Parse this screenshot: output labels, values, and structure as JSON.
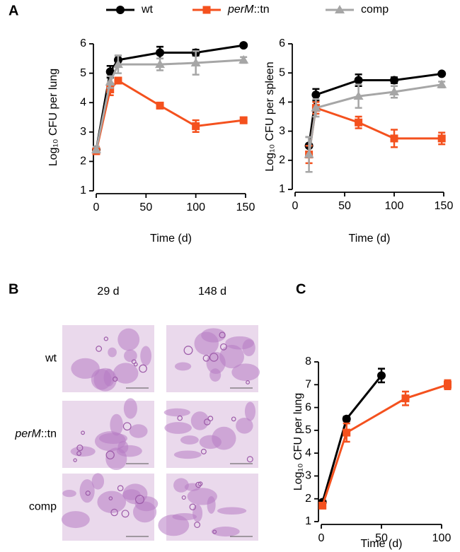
{
  "chart_data": [
    {
      "type": "line",
      "panel": "A",
      "xlabel": "Time (d)",
      "ylabel": "Log₁₀ CFU per lung",
      "xlim": [
        0,
        150
      ],
      "xticks": [
        0,
        50,
        100,
        150
      ],
      "ylim": [
        1,
        6
      ],
      "yticks": [
        1,
        2,
        3,
        4,
        5,
        6
      ],
      "series": [
        {
          "name": "wt",
          "color": "#000000",
          "marker": "circle",
          "x": [
            0,
            14,
            22,
            64,
            100,
            148
          ],
          "values": [
            2.4,
            5.05,
            5.45,
            5.7,
            5.7,
            5.95
          ],
          "errors": [
            0.1,
            0.2,
            0.15,
            0.2,
            0.1,
            0.05
          ]
        },
        {
          "name": "perM::tn",
          "color": "#f4511e",
          "marker": "square",
          "x": [
            0,
            14,
            22,
            64,
            100,
            148
          ],
          "values": [
            2.35,
            4.45,
            4.75,
            3.9,
            3.2,
            3.4
          ],
          "errors": [
            0.1,
            0.2,
            0.1,
            0.1,
            0.2,
            0.1
          ]
        },
        {
          "name": "comp",
          "color": "#a6a6a6",
          "marker": "triangle",
          "x": [
            0,
            14,
            22,
            64,
            100,
            148
          ],
          "values": [
            2.4,
            4.7,
            5.3,
            5.3,
            5.35,
            5.45
          ],
          "errors": [
            0.1,
            0.2,
            0.3,
            0.2,
            0.4,
            0.1
          ]
        }
      ]
    },
    {
      "type": "line",
      "xlabel": "Time (d)",
      "ylabel": "Log₁₀ CFU per spleen",
      "xlim": [
        0,
        150
      ],
      "xticks": [
        0,
        50,
        100,
        150
      ],
      "ylim": [
        1,
        6
      ],
      "yticks": [
        1,
        2,
        3,
        4,
        5,
        6
      ],
      "series": [
        {
          "color": "#000000",
          "marker": "circle",
          "x": [
            14,
            21,
            64,
            100,
            148
          ],
          "values": [
            2.5,
            4.25,
            4.75,
            4.75,
            4.97
          ],
          "errors": [
            0.3,
            0.2,
            0.2,
            0.1,
            0.05
          ]
        },
        {
          "color": "#f4511e",
          "marker": "square",
          "x": [
            14,
            21,
            64,
            100,
            148
          ],
          "values": [
            2.2,
            3.8,
            3.3,
            2.75,
            2.75
          ],
          "errors": [
            0.3,
            0.2,
            0.2,
            0.3,
            0.2
          ]
        },
        {
          "color": "#a6a6a6",
          "marker": "triangle",
          "x": [
            14,
            21,
            64,
            100,
            148
          ],
          "values": [
            2.2,
            3.8,
            4.2,
            4.35,
            4.6
          ],
          "errors": [
            0.6,
            0.3,
            0.4,
            0.2,
            0.1
          ]
        }
      ]
    },
    {
      "type": "image_grid",
      "panel": "B",
      "columns": [
        "29 d",
        "148 d"
      ],
      "rows": [
        "wt",
        "perM::tn",
        "comp"
      ]
    },
    {
      "type": "line",
      "panel": "C",
      "xlabel": "Time (d)",
      "ylabel": "Log₁₀ CFU per lung",
      "xlim": [
        0,
        100
      ],
      "xticks": [
        0,
        50,
        100
      ],
      "ylim": [
        1,
        8
      ],
      "yticks": [
        1,
        2,
        3,
        4,
        5,
        6,
        7,
        8
      ],
      "series": [
        {
          "color": "#000000",
          "marker": "circle",
          "x": [
            1,
            21,
            50
          ],
          "values": [
            1.85,
            5.5,
            7.4
          ],
          "errors": [
            0.05,
            0.1,
            0.3
          ]
        },
        {
          "color": "#f4511e",
          "marker": "square",
          "x": [
            1,
            21,
            70,
            105
          ],
          "values": [
            1.7,
            4.9,
            6.4,
            7.0
          ],
          "errors": [
            0.1,
            0.4,
            0.3,
            0.2
          ]
        }
      ]
    }
  ]
}
